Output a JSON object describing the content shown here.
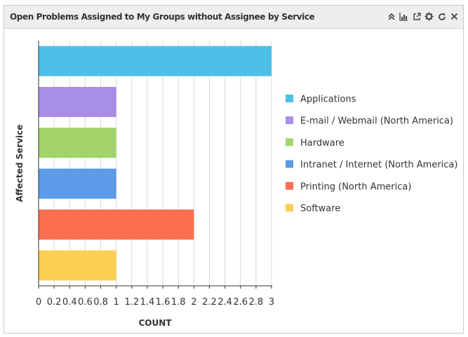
{
  "widget": {
    "title": "Open Problems Assigned to My Groups without Assignee by Service",
    "toolbar": [
      {
        "icon": "collapse-icon"
      },
      {
        "icon": "chart-type-icon"
      },
      {
        "icon": "open-external-icon"
      },
      {
        "icon": "settings-gear-icon"
      },
      {
        "icon": "refresh-icon"
      },
      {
        "icon": "close-icon"
      }
    ]
  },
  "chart_data": {
    "type": "bar",
    "orientation": "horizontal",
    "categories": [
      "Applications",
      "E-mail / Webmail (North America)",
      "Hardware",
      "Intranet / Internet (North America)",
      "Printing (North America)",
      "Software"
    ],
    "values": [
      3,
      1,
      1,
      1,
      2,
      1
    ],
    "colors": [
      "#4dc0e8",
      "#a98ee8",
      "#a3d46b",
      "#5b9be8",
      "#fc6e50",
      "#fdcf55"
    ],
    "xlabel": "COUNT",
    "ylabel": "Affected Service",
    "xlim": [
      0,
      3
    ],
    "xticks": [
      "0",
      "0.2",
      "0.4",
      "0.6",
      "0.8",
      "1",
      "1.2",
      "1.4",
      "1.6",
      "1.8",
      "2",
      "2.2",
      "2.4",
      "2.6",
      "2.8",
      "3"
    ],
    "grid": true,
    "legend": "right"
  }
}
